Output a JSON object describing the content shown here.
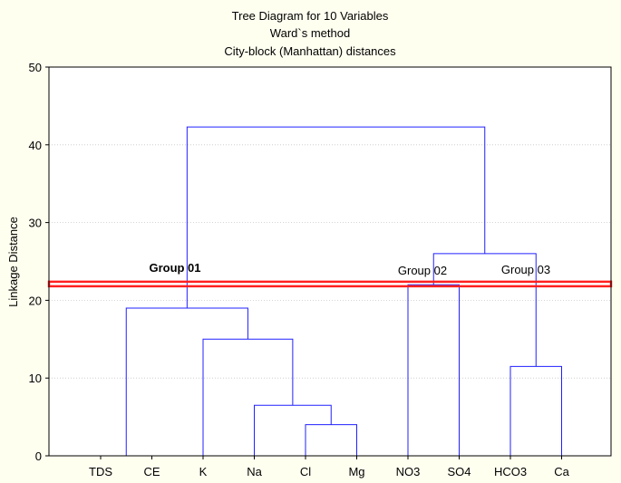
{
  "chart_data": {
    "type": "dendrogram",
    "title": "Tree Diagram for 10  Variables",
    "subtitle_1": "Ward`s method",
    "subtitle_2": "City-block (Manhattan) distances",
    "ylabel": "Linkage Distance",
    "xlabel": "",
    "ylim": [
      0,
      50
    ],
    "yticks": [
      "0",
      "10",
      "20",
      "30",
      "40",
      "50"
    ],
    "grid": true,
    "leaves": [
      "TDS",
      "CE",
      "K",
      "Na",
      "Cl",
      "Mg",
      "NO3",
      "SO4",
      "HCO3",
      "Ca"
    ],
    "merges": [
      {
        "left": "TDS",
        "right": "CE",
        "height": 0
      },
      {
        "left": "Cl",
        "right": "Mg",
        "height": 4
      },
      {
        "left": "Na",
        "right": "(Cl,Mg)",
        "height": 6.5
      },
      {
        "left": "HCO3",
        "right": "Ca",
        "height": 11.5
      },
      {
        "left": "K",
        "right": "(Na,Cl,Mg)",
        "height": 15
      },
      {
        "left": "(TDS,CE)",
        "right": "(K,Na,Cl,Mg)",
        "height": 19
      },
      {
        "left": "NO3",
        "right": "SO4",
        "height": 22
      },
      {
        "left": "(NO3,SO4)",
        "right": "(HCO3,Ca)",
        "height": 26
      },
      {
        "left": "Group 01 cluster",
        "right": "(NO3,SO4,HCO3,Ca)",
        "height": 42.3
      }
    ],
    "cut_line": {
      "value": 22.1,
      "color": "#ff2020"
    },
    "groups": [
      "Group 01",
      "Group 02",
      "Group 03"
    ],
    "colors": {
      "tree": "#2020ff",
      "axis": "#000000",
      "grid": "#c8c8c8",
      "background": "#fffff0",
      "plot_background": "#ffffff"
    }
  }
}
